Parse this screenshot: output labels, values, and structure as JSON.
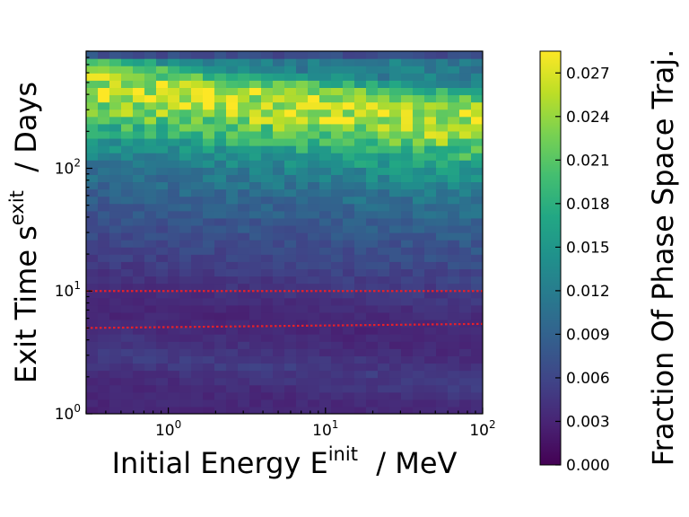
{
  "chart_data": {
    "type": "heatmap",
    "x_scale": "log",
    "y_scale": "log",
    "xlim": [
      0.3,
      100
    ],
    "ylim": [
      1,
      900
    ],
    "xlabel": {
      "main": "Initial Energy E",
      "sup": "init",
      "suffix": "  / MeV"
    },
    "ylabel": {
      "main": "Exit Time s",
      "sup": "exit",
      "suffix": "  / Days"
    },
    "x_ticks": [
      {
        "value": 1,
        "base": "10",
        "exp": "0"
      },
      {
        "value": 10,
        "base": "10",
        "exp": "1"
      },
      {
        "value": 100,
        "base": "10",
        "exp": "2"
      }
    ],
    "y_ticks": [
      {
        "value": 1,
        "base": "10",
        "exp": "0"
      },
      {
        "value": 10,
        "base": "10",
        "exp": "1"
      },
      {
        "value": 100,
        "base": "10",
        "exp": "2"
      }
    ],
    "colorbar": {
      "label": "Fraction Of Phase Space Traj.",
      "min": 0.0,
      "max": 0.0285,
      "colormap": "viridis",
      "ticks": [
        "0.000",
        "0.003",
        "0.006",
        "0.009",
        "0.012",
        "0.015",
        "0.018",
        "0.021",
        "0.024",
        "0.027"
      ]
    },
    "grid": false,
    "n_x_bins": 34,
    "n_y_bins": 50,
    "bin_profile_by_log_time": [
      {
        "log_s": 0.0,
        "fraction": 0.003
      },
      {
        "log_s": 0.3,
        "fraction": 0.0035
      },
      {
        "log_s": 0.5,
        "fraction": 0.005
      },
      {
        "log_s": 0.6,
        "fraction": 0.0045
      },
      {
        "log_s": 0.75,
        "fraction": 0.0035
      },
      {
        "log_s": 0.9,
        "fraction": 0.003
      },
      {
        "log_s": 1.1,
        "fraction": 0.004
      },
      {
        "log_s": 1.4,
        "fraction": 0.006
      },
      {
        "log_s": 1.7,
        "fraction": 0.008
      },
      {
        "log_s": 2.0,
        "fraction": 0.011
      },
      {
        "log_s": 2.2,
        "fraction": 0.014
      },
      {
        "log_s": 2.4,
        "fraction": 0.02
      },
      {
        "log_s": 2.6,
        "fraction": 0.026
      },
      {
        "log_s": 2.75,
        "fraction": 0.025
      },
      {
        "log_s": 2.85,
        "fraction": 0.02
      },
      {
        "log_s": 2.95,
        "fraction": 0.012
      }
    ],
    "peak_shift_with_energy": "peak moves from ~560 days at 0.3 MeV to ~300 days at 100 MeV",
    "reference_lines": [
      {
        "y": 10,
        "color": "#e8202a",
        "style": "dotted"
      },
      {
        "y": 5.0,
        "y_end": 5.4,
        "color": "#e8202a",
        "style": "dotted"
      }
    ]
  }
}
